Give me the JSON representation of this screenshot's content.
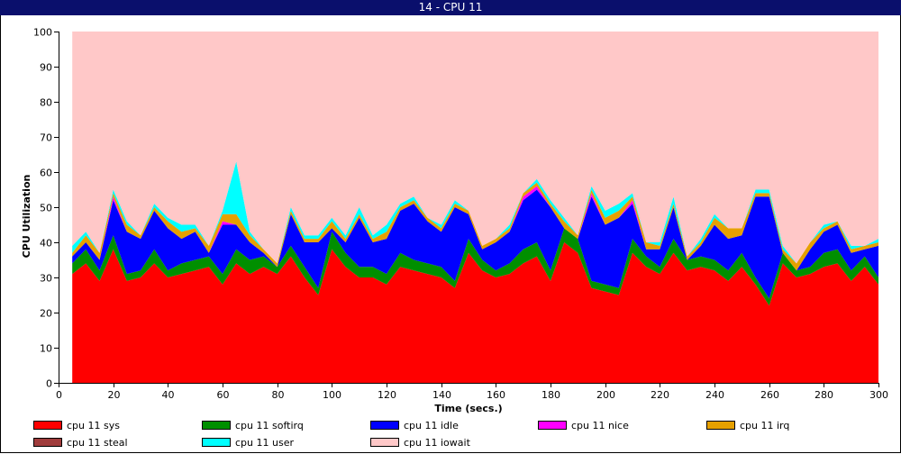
{
  "window": {
    "title": "14 - CPU 11"
  },
  "chart_data": {
    "type": "area",
    "stacked": true,
    "xlabel": "Time (secs.)",
    "ylabel": "CPU Utilization",
    "xlim": [
      0,
      300
    ],
    "ylim": [
      0,
      100
    ],
    "xticks": [
      0,
      20,
      40,
      60,
      80,
      100,
      120,
      140,
      160,
      180,
      200,
      220,
      240,
      260,
      280,
      300
    ],
    "yticks": [
      0,
      10,
      20,
      30,
      40,
      50,
      60,
      70,
      80,
      90,
      100
    ],
    "grid": false,
    "legend_position": "bottom",
    "x": [
      5,
      10,
      15,
      20,
      25,
      30,
      35,
      40,
      45,
      50,
      55,
      60,
      65,
      70,
      75,
      80,
      85,
      90,
      95,
      100,
      105,
      110,
      115,
      120,
      125,
      130,
      135,
      140,
      145,
      150,
      155,
      160,
      165,
      170,
      175,
      180,
      185,
      190,
      195,
      200,
      205,
      210,
      215,
      220,
      225,
      230,
      235,
      240,
      245,
      250,
      255,
      260,
      265,
      270,
      275,
      280,
      285,
      290,
      295,
      300
    ],
    "series": [
      {
        "name": "cpu 11 sys",
        "color": "#ff0000",
        "values": [
          31,
          34,
          29,
          38,
          29,
          30,
          34,
          30,
          31,
          32,
          33,
          28,
          34,
          31,
          33,
          31,
          36,
          30,
          25,
          38,
          33,
          30,
          30,
          28,
          33,
          32,
          31,
          30,
          27,
          37,
          32,
          30,
          31,
          34,
          36,
          29,
          40,
          37,
          27,
          26,
          25,
          37,
          33,
          31,
          37,
          32,
          33,
          32,
          29,
          33,
          28,
          22,
          34,
          30,
          31,
          33,
          34,
          29,
          33,
          28
        ]
      },
      {
        "name": "cpu 11 softirq",
        "color": "#008f00",
        "values": [
          3,
          4,
          3,
          4,
          2,
          2,
          4,
          2,
          3,
          3,
          3,
          3,
          4,
          4,
          3,
          2,
          3,
          3,
          2,
          5,
          4,
          3,
          3,
          3,
          4,
          3,
          3,
          3,
          2,
          4,
          3,
          2,
          3,
          4,
          4,
          3,
          4,
          4,
          2,
          2,
          2,
          4,
          3,
          2,
          4,
          3,
          3,
          3,
          3,
          4,
          2,
          2,
          3,
          2,
          2,
          4,
          4,
          3,
          3,
          2
        ]
      },
      {
        "name": "cpu 11 idle",
        "color": "#0000ff",
        "values": [
          2,
          2,
          3,
          10,
          12,
          9,
          11,
          12,
          7,
          8,
          1,
          14,
          7,
          5,
          1,
          0,
          9,
          7,
          13,
          1,
          3,
          14,
          7,
          10,
          12,
          16,
          12,
          10,
          21,
          7,
          3,
          8,
          9,
          14,
          15,
          18,
          0,
          0,
          24,
          17,
          20,
          10,
          2,
          5,
          9,
          0,
          3,
          10,
          9,
          5,
          23,
          29,
          0,
          0,
          5,
          6,
          7,
          5,
          2,
          9
        ]
      },
      {
        "name": "cpu 11 nice",
        "color": "#ff00ff",
        "values": [
          0,
          0,
          0,
          1,
          0,
          0,
          0,
          0,
          0,
          0,
          0,
          1,
          0,
          0,
          0,
          0,
          0,
          0,
          0,
          0,
          0,
          0,
          0,
          0,
          0,
          0,
          0,
          0,
          0,
          0,
          0,
          0,
          0,
          1,
          1,
          0,
          0,
          0,
          1,
          0,
          0,
          1,
          0,
          0,
          0,
          0,
          0,
          0,
          0,
          0,
          0,
          0,
          0,
          0,
          0,
          0,
          0,
          0,
          0,
          0
        ]
      },
      {
        "name": "cpu 11 irq",
        "color": "#e6a000",
        "values": [
          1,
          2,
          2,
          1,
          2,
          1,
          1,
          2,
          2,
          1,
          2,
          2,
          3,
          2,
          1,
          1,
          1,
          1,
          1,
          2,
          1,
          1,
          1,
          2,
          1,
          1,
          1,
          1,
          1,
          1,
          1,
          1,
          1,
          1,
          1,
          1,
          2,
          1,
          1,
          2,
          2,
          1,
          2,
          1,
          1,
          1,
          1,
          2,
          3,
          2,
          1,
          1,
          1,
          2,
          2,
          1,
          1,
          1,
          1,
          1
        ]
      },
      {
        "name": "cpu 11 steal",
        "color": "#a03c3c",
        "values": [
          0,
          0,
          0,
          0,
          0,
          0,
          0,
          0,
          0,
          0,
          0,
          0,
          0,
          0,
          0,
          0,
          0,
          0,
          0,
          0,
          0,
          0,
          0,
          0,
          0,
          0,
          0,
          0,
          0,
          0,
          0,
          0,
          0,
          0,
          0,
          0,
          0,
          0,
          0,
          0,
          0,
          0,
          0,
          0,
          0,
          0,
          0,
          0,
          0,
          0,
          0,
          0,
          0,
          0,
          0,
          0,
          0,
          0,
          0,
          0
        ]
      },
      {
        "name": "cpu 11 user",
        "color": "#00ffff",
        "values": [
          2,
          1,
          0,
          1,
          1,
          0,
          1,
          1,
          2,
          1,
          0,
          1,
          15,
          1,
          0,
          0,
          1,
          1,
          1,
          1,
          1,
          2,
          1,
          2,
          1,
          1,
          0,
          1,
          1,
          0,
          0,
          0,
          1,
          0,
          1,
          1,
          1,
          0,
          1,
          2,
          2,
          1,
          0,
          1,
          2,
          0,
          1,
          1,
          0,
          0,
          1,
          1,
          1,
          0,
          0,
          1,
          0,
          1,
          0,
          1
        ]
      },
      {
        "name": "cpu 11 iowait",
        "color": "#ffc8c8",
        "values": [
          61,
          57,
          63,
          45,
          54,
          58,
          49,
          53,
          55,
          55,
          61,
          51,
          37,
          57,
          62,
          66,
          50,
          58,
          58,
          53,
          58,
          50,
          58,
          55,
          49,
          47,
          53,
          55,
          48,
          51,
          61,
          59,
          55,
          46,
          42,
          48,
          53,
          58,
          44,
          51,
          49,
          46,
          60,
          60,
          47,
          64,
          59,
          52,
          56,
          56,
          45,
          45,
          61,
          66,
          60,
          55,
          54,
          61,
          61,
          59
        ]
      }
    ]
  }
}
